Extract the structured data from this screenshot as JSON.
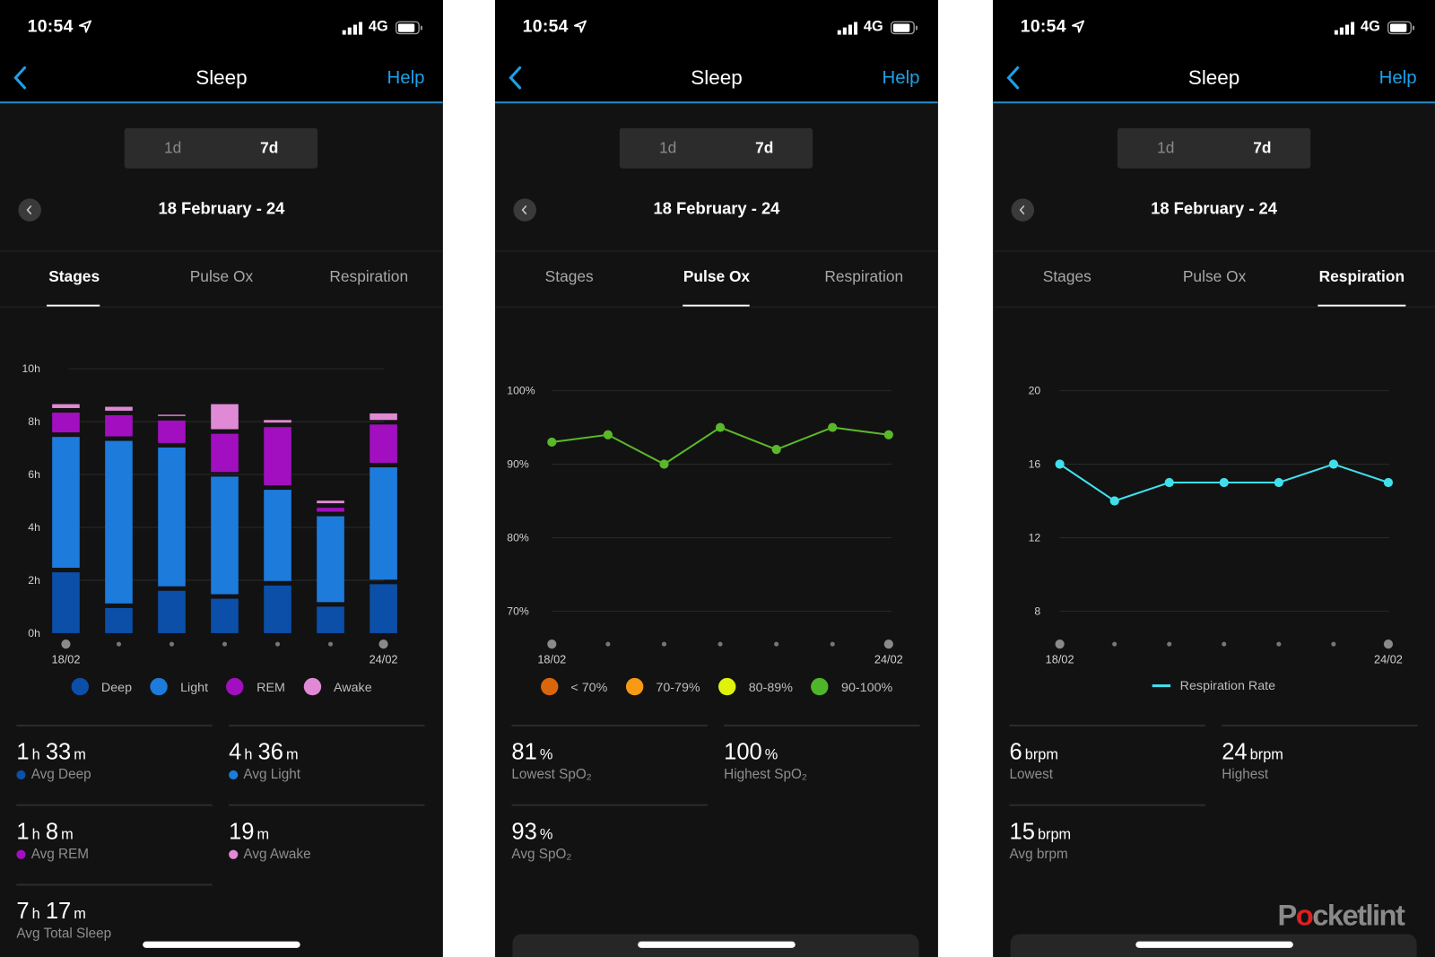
{
  "colors": {
    "accent": "#1ea0e6",
    "deep": "#0b4fa8",
    "light": "#1d7bdc",
    "rem": "#a20fc0",
    "awake": "#e08ad6",
    "pulse_line": "#5ab82a",
    "resp_line": "#3fe0ec",
    "lt70": "#d9660c",
    "r70_79": "#f79a12",
    "r80_89": "#dff20a",
    "r90_100": "#4fb52a"
  },
  "watermark": "Pocketlint",
  "panels": [
    {
      "status": {
        "time": "10:54",
        "network": "4G",
        "icons": [
          "location-arrow-icon",
          "signal-icon",
          "battery-icon"
        ]
      },
      "header": {
        "title": "Sleep",
        "help": "Help",
        "back_icon": "chevron-left-icon"
      },
      "segments": [
        {
          "label": "1d",
          "active": false
        },
        {
          "label": "7d",
          "active": true
        }
      ],
      "date": "18 February - 24",
      "tabs": [
        {
          "label": "Stages",
          "active": true
        },
        {
          "label": "Pulse Ox",
          "active": false
        },
        {
          "label": "Respiration",
          "active": false
        }
      ],
      "legend": [
        {
          "label": "Deep",
          "color": "#0b4fa8"
        },
        {
          "label": "Light",
          "color": "#1d7bdc"
        },
        {
          "label": "REM",
          "color": "#a20fc0"
        },
        {
          "label": "Awake",
          "color": "#e08ad6"
        }
      ],
      "stats": [
        {
          "parts": [
            {
              "v": "1",
              "u": "h"
            },
            {
              "v": "33",
              "u": "m"
            }
          ],
          "label": "Avg Deep",
          "dot": "#0b4fa8"
        },
        {
          "parts": [
            {
              "v": "4",
              "u": "h"
            },
            {
              "v": "36",
              "u": "m"
            }
          ],
          "label": "Avg Light",
          "dot": "#1d7bdc"
        },
        {
          "parts": [
            {
              "v": "1",
              "u": "h"
            },
            {
              "v": "8",
              "u": "m"
            }
          ],
          "label": "Avg REM",
          "dot": "#a20fc0"
        },
        {
          "parts": [
            {
              "v": "19",
              "u": "m"
            }
          ],
          "label": "Avg Awake",
          "dot": "#e08ad6"
        },
        {
          "parts": [
            {
              "v": "7",
              "u": "h"
            },
            {
              "v": "17",
              "u": "m"
            }
          ],
          "label": "Avg Total Sleep",
          "dot": null
        }
      ]
    },
    {
      "status": {
        "time": "10:54",
        "network": "4G",
        "icons": [
          "location-arrow-icon",
          "signal-icon",
          "battery-icon"
        ]
      },
      "header": {
        "title": "Sleep",
        "help": "Help",
        "back_icon": "chevron-left-icon"
      },
      "segments": [
        {
          "label": "1d",
          "active": false
        },
        {
          "label": "7d",
          "active": true
        }
      ],
      "date": "18 February - 24",
      "tabs": [
        {
          "label": "Stages",
          "active": false
        },
        {
          "label": "Pulse Ox",
          "active": true
        },
        {
          "label": "Respiration",
          "active": false
        }
      ],
      "legend": [
        {
          "label": "< 70%",
          "color": "#d9660c"
        },
        {
          "label": "70-79%",
          "color": "#f79a12"
        },
        {
          "label": "80-89%",
          "color": "#dff20a"
        },
        {
          "label": "90-100%",
          "color": "#4fb52a"
        }
      ],
      "stats": [
        {
          "parts": [
            {
              "v": "81",
              "u": "%"
            }
          ],
          "label": "Lowest SpO₂",
          "dot": null
        },
        {
          "parts": [
            {
              "v": "100",
              "u": "%"
            }
          ],
          "label": "Highest SpO₂",
          "dot": null
        },
        {
          "parts": [
            {
              "v": "93",
              "u": "%"
            }
          ],
          "label": "Avg SpO₂",
          "dot": null
        }
      ]
    },
    {
      "status": {
        "time": "10:54",
        "network": "4G",
        "icons": [
          "location-arrow-icon",
          "signal-icon",
          "battery-icon"
        ]
      },
      "header": {
        "title": "Sleep",
        "help": "Help",
        "back_icon": "chevron-left-icon"
      },
      "segments": [
        {
          "label": "1d",
          "active": false
        },
        {
          "label": "7d",
          "active": true
        }
      ],
      "date": "18 February - 24",
      "tabs": [
        {
          "label": "Stages",
          "active": false
        },
        {
          "label": "Pulse Ox",
          "active": false
        },
        {
          "label": "Respiration",
          "active": true
        }
      ],
      "legend": [
        {
          "label": "Respiration Rate",
          "color": "#3fe0ec",
          "line": true
        }
      ],
      "stats": [
        {
          "parts": [
            {
              "v": "6",
              "u": "brpm"
            }
          ],
          "label": "Lowest",
          "dot": null
        },
        {
          "parts": [
            {
              "v": "24",
              "u": "brpm"
            }
          ],
          "label": "Highest",
          "dot": null
        },
        {
          "parts": [
            {
              "v": "15",
              "u": "brpm"
            }
          ],
          "label": "Avg brpm",
          "dot": null
        }
      ]
    }
  ],
  "chart_data": [
    {
      "type": "bar",
      "stacked": true,
      "x_tick_labels": [
        "18/02",
        "24/02"
      ],
      "points": 7,
      "yticks": [
        "0h",
        "2h",
        "4h",
        "6h",
        "8h",
        "10h"
      ],
      "ylim": [
        0,
        10
      ],
      "ylabel": "",
      "xlabel": "",
      "grid": true,
      "legend": "bottom",
      "series": [
        {
          "name": "Deep",
          "color": "#0b4fa8",
          "values": [
            2.3,
            0.95,
            1.6,
            1.3,
            1.8,
            1.0,
            1.85
          ]
        },
        {
          "name": "Light",
          "color": "#1d7bdc",
          "values": [
            5.0,
            6.2,
            5.3,
            4.5,
            3.5,
            3.3,
            4.3
          ]
        },
        {
          "name": "REM",
          "color": "#a20fc0",
          "values": [
            0.8,
            0.85,
            0.9,
            1.5,
            2.25,
            0.2,
            1.5
          ]
        },
        {
          "name": "Awake",
          "color": "#e08ad6",
          "values": [
            0.2,
            0.2,
            0.1,
            1.0,
            0.15,
            0.15,
            0.3
          ]
        }
      ]
    },
    {
      "type": "line",
      "x_tick_labels": [
        "18/02",
        "24/02"
      ],
      "points": 7,
      "yticks": [
        "70%",
        "80%",
        "90%",
        "100%"
      ],
      "ylim": [
        70,
        100
      ],
      "grid": true,
      "legend": "bottom",
      "series": [
        {
          "color": "#5ab82a",
          "values": [
            93,
            94,
            90,
            95,
            92,
            95,
            94
          ]
        }
      ]
    },
    {
      "type": "line",
      "x_tick_labels": [
        "18/02",
        "24/02"
      ],
      "points": 7,
      "yticks": [
        "8",
        "12",
        "16",
        "20"
      ],
      "ylim": [
        8,
        20
      ],
      "grid": true,
      "legend": "bottom",
      "series": [
        {
          "name": "Respiration Rate",
          "color": "#3fe0ec",
          "values": [
            16,
            14,
            15,
            15,
            15,
            16,
            15
          ]
        }
      ]
    }
  ]
}
